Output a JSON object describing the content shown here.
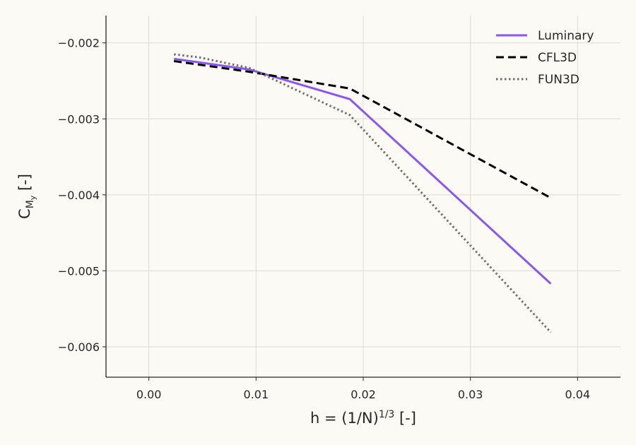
{
  "chart_data": {
    "type": "line",
    "xlabel": {
      "base": "h = (1/N)",
      "sup": "1/3",
      "suffix": " [-]"
    },
    "ylabel": {
      "base": "C",
      "sub": "M",
      "subsub": "y",
      "suffix": " [-]"
    },
    "xlim": [
      -0.004,
      0.044
    ],
    "ylim": [
      -0.0064,
      -0.00164
    ],
    "xticks": [
      0.0,
      0.01,
      0.02,
      0.03,
      0.04
    ],
    "xtick_labels": [
      "0.00",
      "0.01",
      "0.02",
      "0.03",
      "0.04"
    ],
    "yticks": [
      -0.002,
      -0.003,
      -0.004,
      -0.005,
      -0.006
    ],
    "ytick_labels": [
      "−0.002",
      "−0.003",
      "−0.004",
      "−0.005",
      "−0.006"
    ],
    "grid": true,
    "legend_position": "top-right",
    "series": [
      {
        "name": "Luminary",
        "style": "solid",
        "color": "#8b55ee",
        "x": [
          0.00234,
          0.00937,
          0.01875,
          0.0375
        ],
        "y": [
          -0.00221,
          -0.00235,
          -0.00274,
          -0.00517
        ]
      },
      {
        "name": "CFL3D",
        "style": "dashed",
        "color": "#000000",
        "x": [
          0.00234,
          0.00937,
          0.01875,
          0.0375
        ],
        "y": [
          -0.00224,
          -0.00238,
          -0.0026,
          -0.00404
        ]
      },
      {
        "name": "FUN3D",
        "style": "dotted",
        "color": "#707070",
        "x": [
          0.00234,
          0.00469,
          0.00937,
          0.01875,
          0.0375
        ],
        "y": [
          -0.00215,
          -0.00219,
          -0.00233,
          -0.00295,
          -0.00581
        ]
      }
    ]
  }
}
